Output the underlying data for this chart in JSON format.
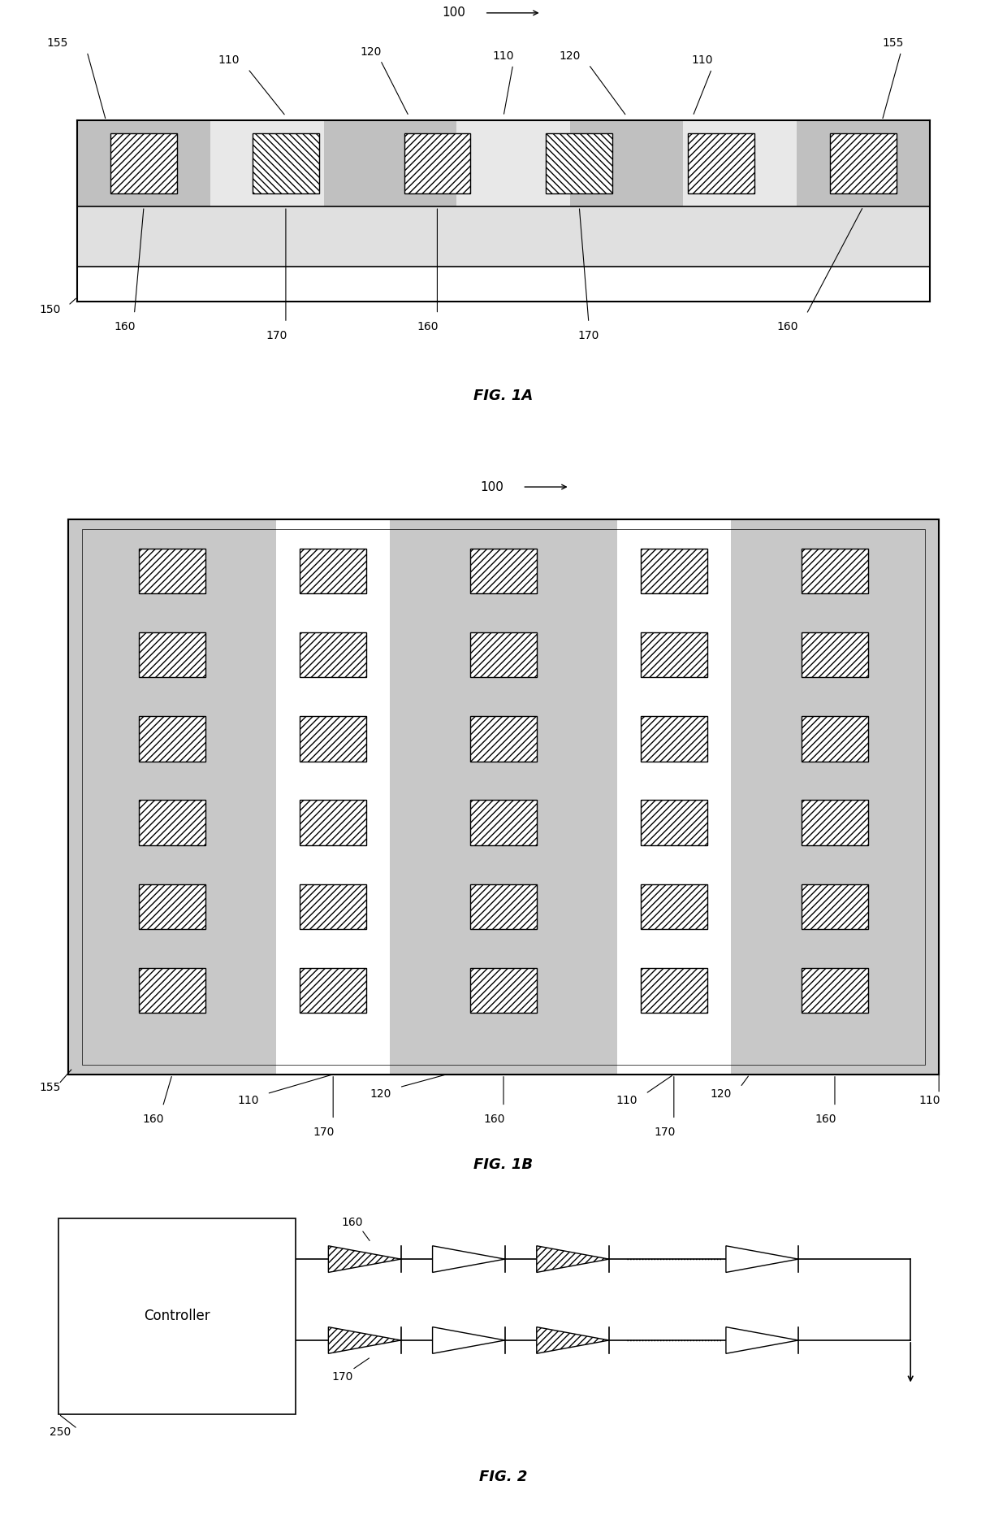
{
  "fig_width": 12.4,
  "fig_height": 18.91,
  "bg_color": "#ffffff",
  "gray_encap": "#c8c8c8",
  "gray_stripe": "#c0c0c0",
  "white": "#ffffff",
  "black": "#000000",
  "fig1a_title": "FIG. 1A",
  "fig1b_title": "FIG. 1B",
  "fig2_title": "FIG. 2",
  "label_100": "100",
  "label_110": "110",
  "label_120": "120",
  "label_150": "150",
  "label_155": "155",
  "label_160": "160",
  "label_170": "170",
  "label_250": "250",
  "controller_text": "Controller"
}
